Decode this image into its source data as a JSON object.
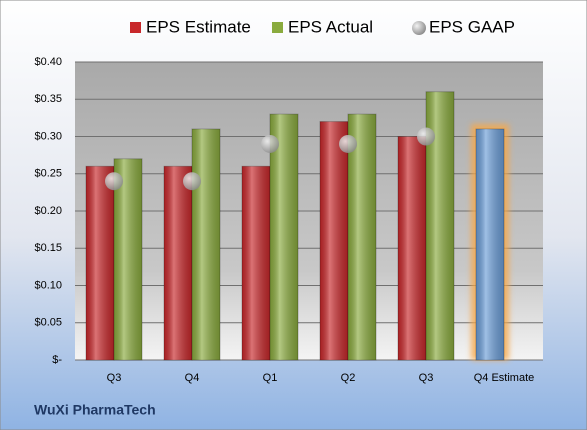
{
  "chart_data": {
    "type": "bar",
    "categories": [
      "Q3",
      "Q4",
      "Q1",
      "Q2",
      "Q3",
      "Q4 Estimate"
    ],
    "series": [
      {
        "name": "EPS Estimate",
        "color": "#c8282b",
        "colors": [
          "#c8282b",
          "#c8282b",
          "#c8282b",
          "#c8282b",
          "#c8282b",
          "#6c9ed8"
        ],
        "values": [
          0.26,
          0.26,
          0.26,
          0.32,
          0.3,
          0.31
        ]
      },
      {
        "name": "EPS Actual",
        "color": "#8aab3e",
        "values": [
          0.27,
          0.31,
          0.33,
          0.33,
          0.36,
          null
        ]
      },
      {
        "name": "EPS GAAP",
        "color": "#a9a9a9",
        "marker": "circle",
        "values": [
          0.24,
          0.24,
          0.29,
          0.29,
          0.3,
          null
        ]
      }
    ],
    "ylim": [
      0,
      0.4
    ],
    "yticks": [
      {
        "value": 0,
        "label": "$-"
      },
      {
        "value": 0.05,
        "label": "$0.05"
      },
      {
        "value": 0.1,
        "label": "$0.10"
      },
      {
        "value": 0.15,
        "label": "$0.15"
      },
      {
        "value": 0.2,
        "label": "$0.20"
      },
      {
        "value": 0.25,
        "label": "$0.25"
      },
      {
        "value": 0.3,
        "label": "$0.30"
      },
      {
        "value": 0.35,
        "label": "$0.35"
      },
      {
        "value": 0.4,
        "label": "$0.40"
      }
    ],
    "grid": true,
    "legend": "top",
    "company": "WuXi PharmaTech"
  }
}
